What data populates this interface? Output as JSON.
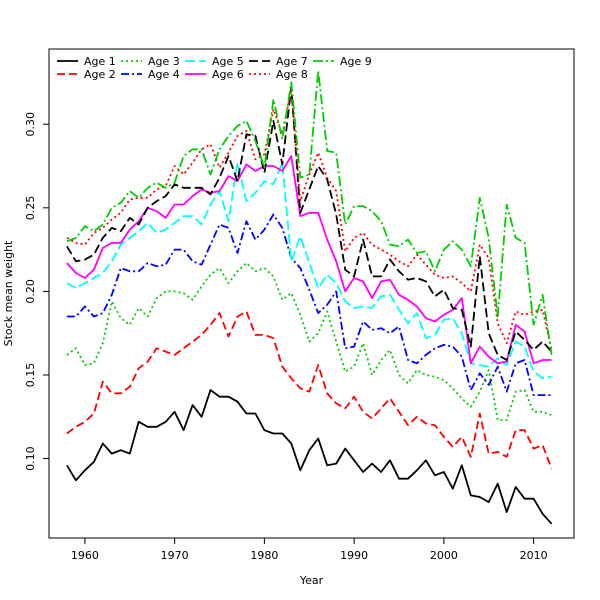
{
  "chart_data": {
    "type": "line",
    "title": "",
    "xlabel": "Year",
    "ylabel": "Stock mean weight",
    "xlim": [
      1956,
      2014.5
    ],
    "ylim": [
      0.0525,
      0.345
    ],
    "xticks": [
      1960,
      1970,
      1980,
      1990,
      2000,
      2010
    ],
    "yticks": [
      0.1,
      0.15,
      0.2,
      0.25,
      0.3
    ],
    "ytick_labels": [
      "0.10",
      "0.15",
      "0.20",
      "0.25",
      "0.30"
    ],
    "grid": false,
    "legend_position": "top-left",
    "x": [
      1958,
      1959,
      1960,
      1961,
      1962,
      1963,
      1964,
      1965,
      1966,
      1967,
      1968,
      1969,
      1970,
      1971,
      1972,
      1973,
      1974,
      1975,
      1976,
      1977,
      1978,
      1979,
      1980,
      1981,
      1982,
      1983,
      1984,
      1985,
      1986,
      1987,
      1988,
      1989,
      1990,
      1991,
      1992,
      1993,
      1994,
      1995,
      1996,
      1997,
      1998,
      1999,
      2000,
      2001,
      2002,
      2003,
      2004,
      2005,
      2006,
      2007,
      2008,
      2009,
      2010,
      2011,
      2012
    ],
    "series": [
      {
        "name": "Age 1",
        "color": "#000000",
        "dash": "solid",
        "values": [
          0.096,
          0.087,
          0.093,
          0.098,
          0.109,
          0.103,
          0.105,
          0.103,
          0.122,
          0.119,
          0.119,
          0.122,
          0.128,
          0.117,
          0.132,
          0.125,
          0.141,
          0.137,
          0.137,
          0.134,
          0.127,
          0.127,
          0.117,
          0.115,
          0.115,
          0.109,
          0.093,
          0.105,
          0.112,
          0.096,
          0.097,
          0.106,
          0.099,
          0.092,
          0.097,
          0.092,
          0.099,
          0.088,
          0.088,
          0.093,
          0.099,
          0.09,
          0.092,
          0.082,
          0.096,
          0.078,
          0.077,
          0.074,
          0.085,
          0.068,
          0.083,
          0.076,
          0.076,
          0.067,
          0.061
        ]
      },
      {
        "name": "Age 2",
        "color": "#ff0000",
        "dash": "8,4",
        "values": [
          0.115,
          0.119,
          0.122,
          0.127,
          0.146,
          0.139,
          0.139,
          0.143,
          0.154,
          0.158,
          0.166,
          0.164,
          0.162,
          0.166,
          0.17,
          0.174,
          0.18,
          0.187,
          0.173,
          0.185,
          0.188,
          0.174,
          0.174,
          0.172,
          0.155,
          0.148,
          0.142,
          0.14,
          0.156,
          0.139,
          0.133,
          0.13,
          0.137,
          0.128,
          0.124,
          0.13,
          0.136,
          0.128,
          0.12,
          0.125,
          0.121,
          0.12,
          0.113,
          0.107,
          0.113,
          0.101,
          0.127,
          0.103,
          0.104,
          0.101,
          0.117,
          0.117,
          0.106,
          0.108,
          0.094
        ]
      },
      {
        "name": "Age 3",
        "color": "#00cd00",
        "dash": "2,3",
        "values": [
          0.162,
          0.166,
          0.156,
          0.157,
          0.169,
          0.194,
          0.184,
          0.18,
          0.19,
          0.185,
          0.196,
          0.2,
          0.2,
          0.199,
          0.195,
          0.203,
          0.21,
          0.214,
          0.205,
          0.212,
          0.217,
          0.212,
          0.214,
          0.209,
          0.195,
          0.199,
          0.186,
          0.17,
          0.175,
          0.188,
          0.17,
          0.152,
          0.155,
          0.169,
          0.15,
          0.159,
          0.165,
          0.15,
          0.145,
          0.153,
          0.15,
          0.149,
          0.147,
          0.142,
          0.136,
          0.131,
          0.14,
          0.153,
          0.123,
          0.123,
          0.14,
          0.141,
          0.128,
          0.128,
          0.126
        ]
      },
      {
        "name": "Age 4",
        "color": "#0000ff",
        "dash": "8,3,2,3",
        "values": [
          0.185,
          0.185,
          0.191,
          0.185,
          0.187,
          0.198,
          0.214,
          0.212,
          0.212,
          0.217,
          0.215,
          0.216,
          0.225,
          0.225,
          0.218,
          0.216,
          0.228,
          0.24,
          0.238,
          0.223,
          0.242,
          0.231,
          0.237,
          0.246,
          0.238,
          0.22,
          0.214,
          0.201,
          0.187,
          0.192,
          0.2,
          0.166,
          0.167,
          0.182,
          0.177,
          0.178,
          0.175,
          0.179,
          0.159,
          0.157,
          0.162,
          0.166,
          0.168,
          0.167,
          0.161,
          0.141,
          0.151,
          0.144,
          0.155,
          0.14,
          0.157,
          0.159,
          0.138,
          0.138,
          0.138
        ]
      },
      {
        "name": "Age 5",
        "color": "#00ffff",
        "dash": "10,4",
        "values": [
          0.205,
          0.202,
          0.205,
          0.208,
          0.211,
          0.218,
          0.228,
          0.232,
          0.236,
          0.241,
          0.235,
          0.237,
          0.241,
          0.245,
          0.245,
          0.24,
          0.252,
          0.26,
          0.242,
          0.277,
          0.254,
          0.259,
          0.266,
          0.264,
          0.277,
          0.218,
          0.233,
          0.217,
          0.202,
          0.21,
          0.205,
          0.194,
          0.19,
          0.191,
          0.19,
          0.197,
          0.198,
          0.189,
          0.181,
          0.187,
          0.172,
          0.174,
          0.183,
          0.184,
          0.175,
          0.157,
          0.156,
          0.155,
          0.16,
          0.156,
          0.17,
          0.167,
          0.152,
          0.148,
          0.149
        ]
      },
      {
        "name": "Age 6",
        "color": "#ff00ff",
        "dash": "solid",
        "values": [
          0.217,
          0.211,
          0.208,
          0.213,
          0.226,
          0.229,
          0.229,
          0.237,
          0.242,
          0.25,
          0.248,
          0.244,
          0.252,
          0.252,
          0.257,
          0.261,
          0.259,
          0.26,
          0.269,
          0.266,
          0.276,
          0.272,
          0.275,
          0.275,
          0.272,
          0.281,
          0.245,
          0.247,
          0.247,
          0.231,
          0.218,
          0.2,
          0.208,
          0.206,
          0.196,
          0.206,
          0.207,
          0.198,
          0.195,
          0.191,
          0.184,
          0.182,
          0.186,
          0.189,
          0.196,
          0.157,
          0.167,
          0.161,
          0.157,
          0.158,
          0.18,
          0.176,
          0.157,
          0.159,
          0.159
        ]
      },
      {
        "name": "Age 7",
        "color": "#000000",
        "dash": "9,4",
        "values": [
          0.227,
          0.218,
          0.219,
          0.222,
          0.232,
          0.238,
          0.236,
          0.244,
          0.24,
          0.25,
          0.254,
          0.257,
          0.264,
          0.262,
          0.262,
          0.262,
          0.258,
          0.268,
          0.281,
          0.266,
          0.294,
          0.293,
          0.271,
          0.302,
          0.276,
          0.322,
          0.247,
          0.261,
          0.275,
          0.267,
          0.246,
          0.213,
          0.209,
          0.231,
          0.209,
          0.209,
          0.219,
          0.212,
          0.207,
          0.208,
          0.206,
          0.197,
          0.201,
          0.19,
          0.189,
          0.167,
          0.221,
          0.175,
          0.162,
          0.159,
          0.176,
          0.171,
          0.165,
          0.17,
          0.164
        ]
      },
      {
        "name": "Age 8",
        "color": "#ff0000",
        "dash": "2,3",
        "values": [
          0.232,
          0.229,
          0.228,
          0.235,
          0.238,
          0.243,
          0.247,
          0.255,
          0.256,
          0.256,
          0.261,
          0.263,
          0.275,
          0.27,
          0.277,
          0.285,
          0.288,
          0.274,
          0.283,
          0.293,
          0.296,
          0.279,
          0.282,
          0.309,
          0.294,
          0.321,
          0.254,
          0.27,
          0.283,
          0.268,
          0.26,
          0.224,
          0.232,
          0.235,
          0.228,
          0.225,
          0.222,
          0.218,
          0.215,
          0.222,
          0.216,
          0.21,
          0.208,
          0.209,
          0.205,
          0.2,
          0.228,
          0.22,
          0.181,
          0.169,
          0.188,
          0.186,
          0.188,
          0.189,
          0.165
        ]
      },
      {
        "name": "Age 9",
        "color": "#00cd00",
        "dash": "10,3,2,3",
        "values": [
          0.23,
          0.232,
          0.239,
          0.236,
          0.24,
          0.25,
          0.253,
          0.26,
          0.256,
          0.262,
          0.265,
          0.262,
          0.265,
          0.281,
          0.285,
          0.285,
          0.27,
          0.285,
          0.293,
          0.299,
          0.302,
          0.29,
          0.274,
          0.315,
          0.291,
          0.325,
          0.268,
          0.27,
          0.332,
          0.284,
          0.283,
          0.24,
          0.251,
          0.251,
          0.248,
          0.242,
          0.228,
          0.227,
          0.231,
          0.223,
          0.224,
          0.212,
          0.225,
          0.23,
          0.225,
          0.215,
          0.256,
          0.232,
          0.185,
          0.252,
          0.232,
          0.229,
          0.18,
          0.198,
          0.162
        ]
      }
    ]
  }
}
